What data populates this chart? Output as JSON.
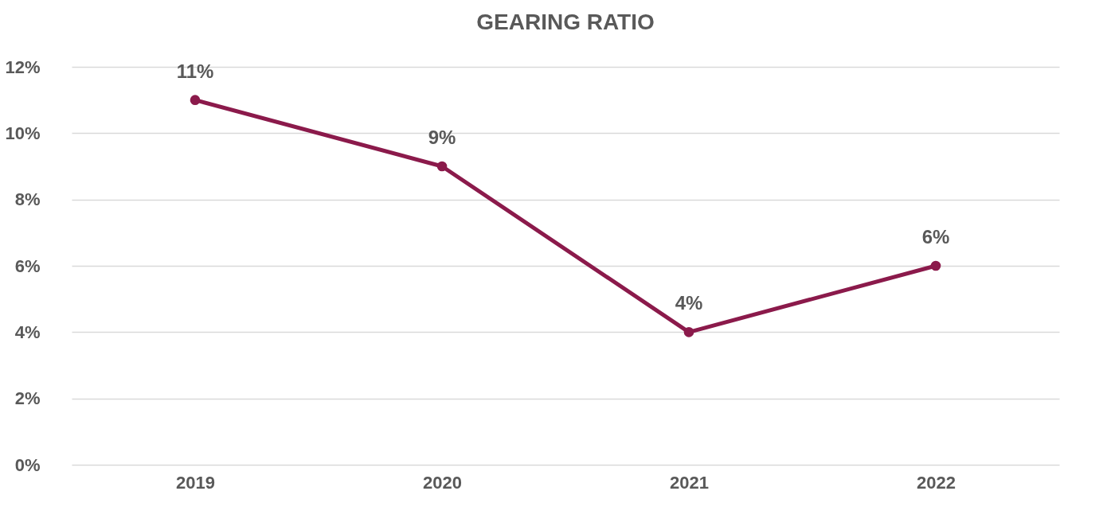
{
  "chart_data": {
    "type": "line",
    "title": "GEARING RATIO",
    "categories": [
      "2019",
      "2020",
      "2021",
      "2022"
    ],
    "series": [
      {
        "color": "#8b1a4b",
        "values": [
          11,
          9,
          4,
          6
        ],
        "value_labels": [
          "11%",
          "9%",
          "4%",
          "6%"
        ]
      }
    ],
    "ylim": [
      0,
      12
    ],
    "yticks": [
      {
        "value": 0,
        "label": "0%"
      },
      {
        "value": 2,
        "label": "2%"
      },
      {
        "value": 4,
        "label": "4%"
      },
      {
        "value": 6,
        "label": "6%"
      },
      {
        "value": 8,
        "label": "8%"
      },
      {
        "value": 10,
        "label": "10%"
      },
      {
        "value": 12,
        "label": "12%"
      }
    ],
    "grid": "y",
    "marker": "circle",
    "line_style": "solid"
  }
}
